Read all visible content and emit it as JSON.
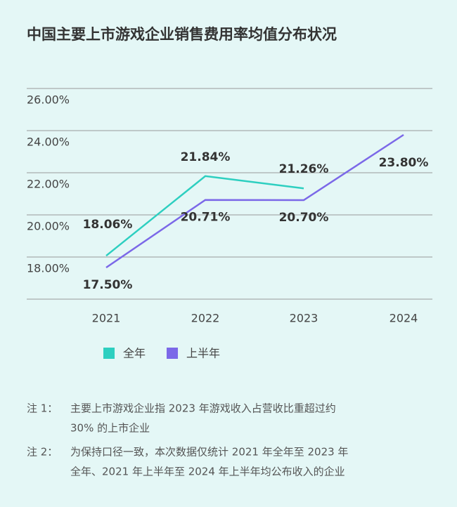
{
  "chart_data": {
    "type": "line",
    "title": "中国主要上市游戏企业销售费用率均值分布状况",
    "categories": [
      "2021",
      "2022",
      "2023",
      "2024"
    ],
    "series": [
      {
        "name": "全年",
        "color": "#2dcfc0",
        "values": [
          18.06,
          21.84,
          21.26,
          null
        ],
        "value_labels": [
          "18.06%",
          "21.84%",
          "21.26%",
          null
        ]
      },
      {
        "name": "上半年",
        "color": "#7b68e8",
        "values": [
          17.5,
          20.71,
          20.7,
          23.8
        ],
        "value_labels": [
          "17.50%",
          "20.71%",
          "20.70%",
          "23.80%"
        ]
      }
    ],
    "ylim": [
      16,
      26
    ],
    "yticks": [
      {
        "value": 18,
        "label": "18.00%"
      },
      {
        "value": 20,
        "label": "20.00%"
      },
      {
        "value": 22,
        "label": "22.00%"
      },
      {
        "value": 24,
        "label": "24.00%"
      },
      {
        "value": 26,
        "label": "26.00%"
      }
    ],
    "grid": true,
    "legend": "bottom"
  },
  "notes": [
    {
      "label": "注 1：",
      "lines": [
        "主要上市游戏企业指 2023 年游戏收入占营收比重超过约",
        "30% 的上市企业"
      ]
    },
    {
      "label": "注 2：",
      "lines": [
        "为保持口径一致，本次数据仅统计 2021 年全年至 2023 年",
        "全年、2021 年上半年至 2024 年上半年均公布收入的企业"
      ]
    }
  ]
}
